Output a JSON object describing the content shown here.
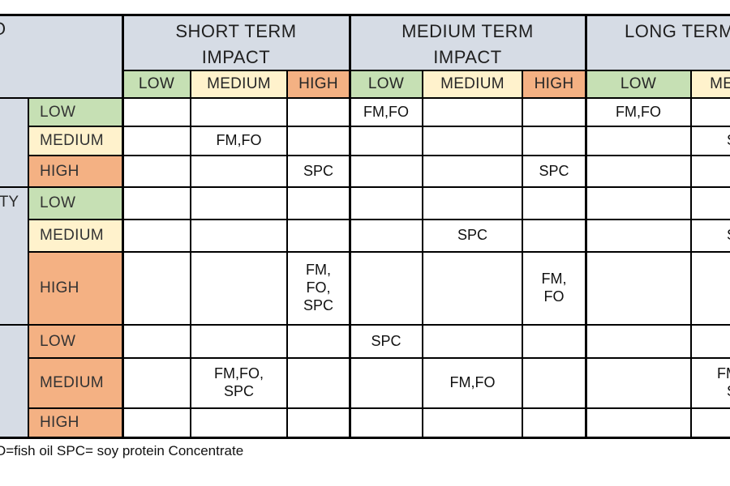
{
  "header": {
    "corner_fragment": "O",
    "sections": [
      {
        "label": "SHORT TERM\nIMPACT"
      },
      {
        "label": "MEDIUM TERM\nIMPACT"
      },
      {
        "label": "LONG TERM IMPACT"
      }
    ],
    "subheaders": [
      "LOW",
      "MEDIUM",
      "HIGH",
      "LOW",
      "MEDIUM",
      "HIGH",
      "LOW",
      "MEDIUM"
    ]
  },
  "groups": [
    {
      "label": ""
    },
    {
      "label": "TY"
    },
    {
      "label": ""
    }
  ],
  "rows": [
    {
      "level": "LOW",
      "tone": "green",
      "cells": [
        "",
        "",
        "",
        "FM,FO",
        "",
        "",
        "FM,FO",
        ""
      ]
    },
    {
      "level": "MEDIUM",
      "tone": "cream",
      "cells": [
        "",
        "FM,FO",
        "",
        "",
        "",
        "",
        "",
        "SPC"
      ]
    },
    {
      "level": "HIGH",
      "tone": "orange",
      "cells": [
        "",
        "",
        "SPC",
        "",
        "",
        "SPC",
        "",
        ""
      ]
    },
    {
      "level": "LOW",
      "tone": "green",
      "cells": [
        "",
        "",
        "",
        "",
        "",
        "",
        "",
        ""
      ]
    },
    {
      "level": "MEDIUM",
      "tone": "cream",
      "cells": [
        "",
        "",
        "",
        "",
        "SPC",
        "",
        "",
        "SPC"
      ]
    },
    {
      "level": "HIGH",
      "tone": "orange",
      "cells": [
        "",
        "",
        "FM,\nFO,\nSPC",
        "",
        "",
        "FM,\nFO",
        "",
        ""
      ]
    },
    {
      "level": "LOW",
      "tone": "orange",
      "cells": [
        "",
        "",
        "",
        "SPC",
        "",
        "",
        "",
        ""
      ]
    },
    {
      "level": "MEDIUM",
      "tone": "orange",
      "cells": [
        "",
        "FM,FO,\nSPC",
        "",
        "",
        "FM,FO",
        "",
        "",
        "FM,FO,\nSPC"
      ]
    },
    {
      "level": "HIGH",
      "tone": "orange",
      "cells": [
        "",
        "",
        "",
        "",
        "",
        "",
        "",
        ""
      ]
    }
  ],
  "footer": {
    "note": "O=fish oil SPC= soy protein Concentrate"
  },
  "colors": {
    "green": "#c6e0b4",
    "cream": "#fff2cc",
    "orange": "#f4b183",
    "header_gray": "#d6dce5",
    "border": "#000000"
  }
}
